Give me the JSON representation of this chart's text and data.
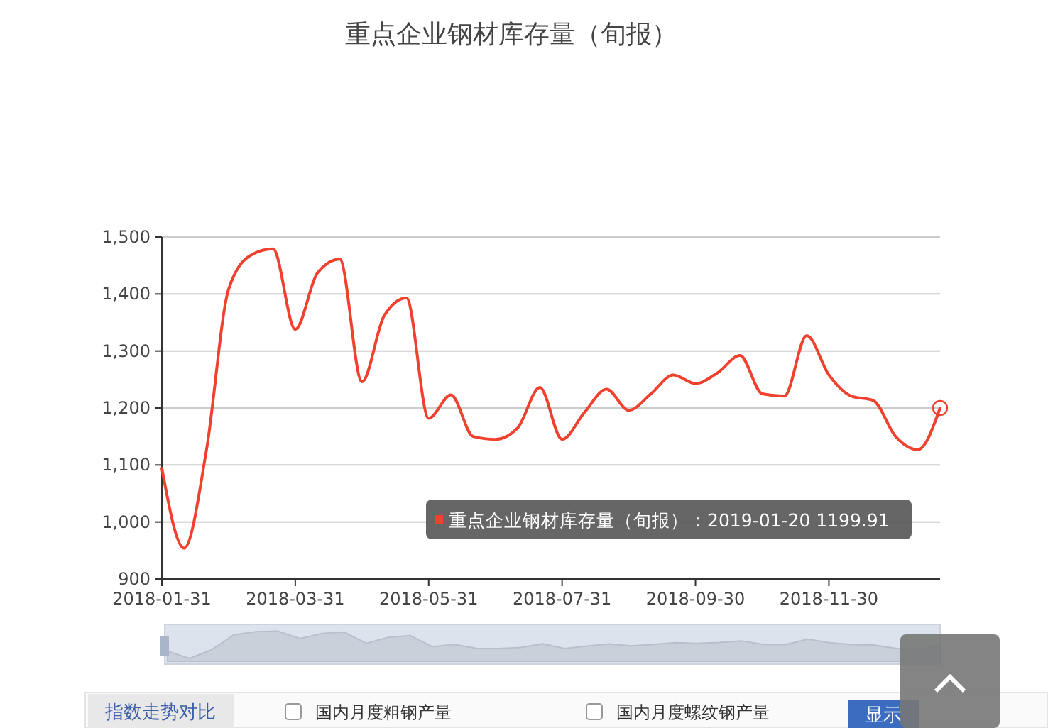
{
  "chart_data": {
    "type": "line",
    "title": "重点企业钢材库存量（旬报）",
    "categories": [
      "2018-01-31",
      null,
      null,
      null,
      null,
      null,
      "2018-03-31",
      null,
      null,
      null,
      null,
      null,
      "2018-05-31",
      null,
      null,
      null,
      null,
      null,
      "2018-07-31",
      null,
      null,
      null,
      null,
      null,
      "2018-09-30",
      null,
      null,
      null,
      null,
      null,
      "2018-11-30",
      null,
      null,
      null,
      null,
      null
    ],
    "series": [
      {
        "color": "#f0412e",
        "values": [
          1094,
          954,
          1125,
          1408,
          1468,
          1479,
          1338,
          1437,
          1461,
          1246,
          1362,
          1393,
          1182,
          1223,
          1150,
          1145,
          1165,
          1236,
          1145,
          1192,
          1233,
          1196,
          1225,
          1258,
          1243,
          1262,
          1292,
          1225,
          1221,
          1327,
          1258,
          1221,
          1213,
          1150,
          1127,
          1200
        ]
      }
    ],
    "ylim": [
      900,
      1500
    ],
    "yticks": [
      {
        "value": 900,
        "label": "900"
      },
      {
        "value": 1000,
        "label": "1,000"
      },
      {
        "value": 1100,
        "label": "1,100"
      },
      {
        "value": 1200,
        "label": "1,200"
      },
      {
        "value": 1300,
        "label": "1,300"
      },
      {
        "value": 1400,
        "label": "1,400"
      },
      {
        "value": 1500,
        "label": "1,500"
      }
    ],
    "grid": "y",
    "line_style": "solid",
    "annotations": [
      "重点企业钢材库存量（旬报）：2019-01-20 1199.91",
      "指数走势对比",
      "国内月度粗钢产量",
      "国内月度螺纹钢产量",
      "显示"
    ]
  }
}
